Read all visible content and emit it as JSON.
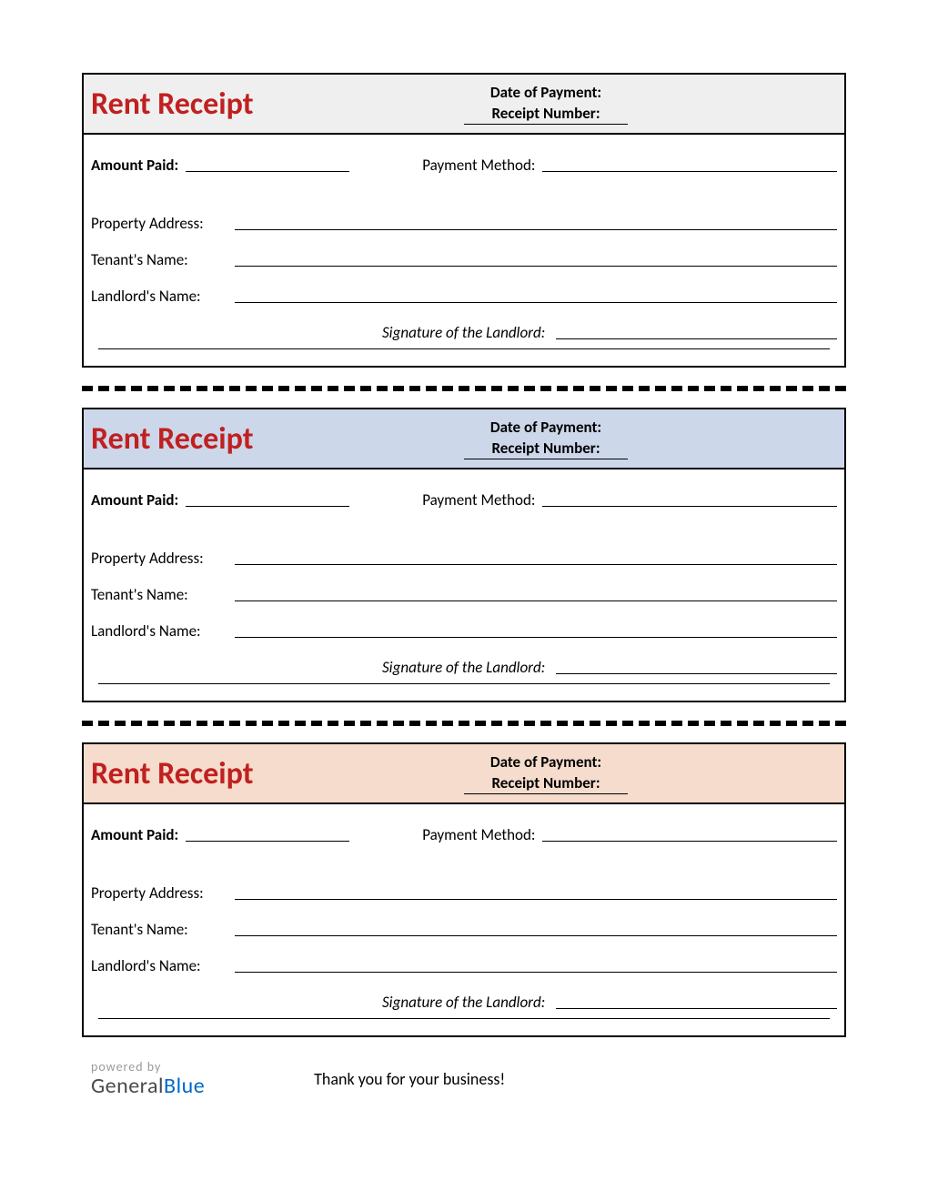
{
  "receipts": [
    {
      "header_bg": "#efefef",
      "title": "Rent Receipt",
      "title_color": "#c02020",
      "date_label": "Date of Payment:",
      "number_label": "Receipt Number:",
      "amount_label": "Amount Paid:",
      "method_label": "Payment Method:",
      "address_label": "Property Address:",
      "tenant_label": "Tenant's Name:",
      "landlord_label": "Landlord's Name:",
      "signature_label": "Signature of the Landlord:"
    },
    {
      "header_bg": "#cdd7ea",
      "title": "Rent Receipt",
      "title_color": "#c02020",
      "date_label": "Date of Payment:",
      "number_label": "Receipt Number:",
      "amount_label": "Amount Paid:",
      "method_label": "Payment Method:",
      "address_label": "Property Address:",
      "tenant_label": "Tenant's Name:",
      "landlord_label": "Landlord's Name:",
      "signature_label": "Signature of the Landlord:"
    },
    {
      "header_bg": "#f6dccc",
      "title": "Rent Receipt",
      "title_color": "#c02020",
      "date_label": "Date of Payment:",
      "number_label": "Receipt Number:",
      "amount_label": "Amount Paid:",
      "method_label": "Payment Method:",
      "address_label": "Property Address:",
      "tenant_label": "Tenant's Name:",
      "landlord_label": "Landlord's Name:",
      "signature_label": "Signature of the Landlord:"
    }
  ],
  "footer": {
    "powered": "powered by",
    "brand_part1": "General",
    "brand_part2": "Blue",
    "thank_you": "Thank you for your business!"
  },
  "colors": {
    "border": "#000000",
    "divider": "#000000",
    "text": "#000000"
  },
  "typography": {
    "title_fontsize": 34,
    "label_fontsize": 17,
    "footer_fontsize": 18
  }
}
